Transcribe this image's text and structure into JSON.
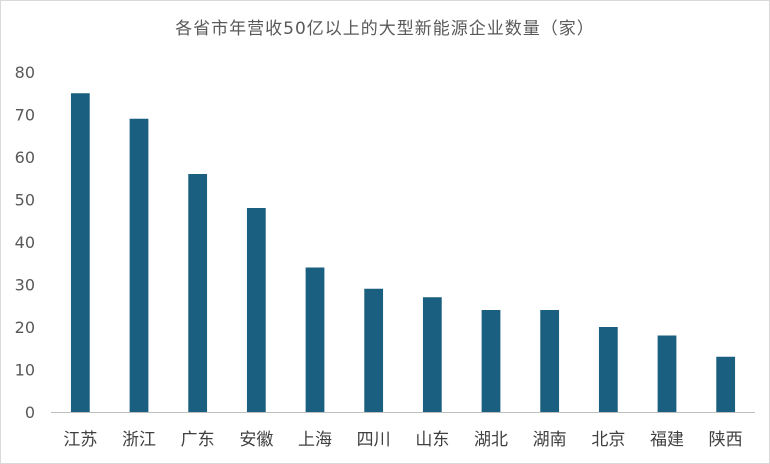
{
  "chart_data": {
    "type": "bar",
    "title": "各省市年营收50亿以上的大型新能源企业数量（家）",
    "categories": [
      "江苏",
      "浙江",
      "广东",
      "安徽",
      "上海",
      "四川",
      "山东",
      "湖北",
      "湖南",
      "北京",
      "福建",
      "陕西"
    ],
    "values": [
      75,
      69,
      56,
      48,
      34,
      29,
      27,
      24,
      24,
      20,
      18,
      13
    ],
    "yticks": [
      "0",
      "10",
      "20",
      "30",
      "40",
      "50",
      "60",
      "70",
      "80"
    ],
    "ylim": [
      0,
      80
    ],
    "xlabel": "",
    "ylabel": "",
    "grid": false,
    "legend": "none",
    "bar_color": "#1a5f7f",
    "axis_color": "#bfbfbf"
  }
}
